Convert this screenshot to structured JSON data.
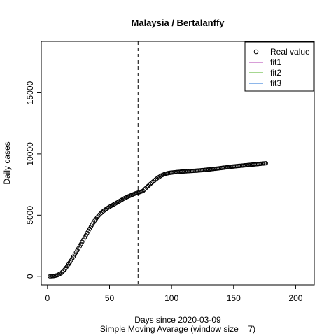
{
  "chart_data": {
    "type": "scatter",
    "title": "Malaysia / Bertalanffy",
    "xlabel": "Days since 2020-03-09",
    "xsublabel": "Simple Moving Avarage (window size = 7)",
    "ylabel": "Daily cases",
    "xlim": [
      -5,
      215
    ],
    "ylim": [
      -700,
      19200
    ],
    "xticks": [
      0,
      50,
      100,
      150,
      200
    ],
    "yticks": [
      0,
      5000,
      10000,
      15000
    ],
    "xtick_labels": [
      "0",
      "50",
      "100",
      "150",
      "200"
    ],
    "ytick_labels": [
      "0",
      "5000",
      "10000",
      "15000"
    ],
    "vline_x": 73,
    "grid": false,
    "legend": {
      "position": "top-right",
      "entries": [
        {
          "label": "Real value",
          "kind": "point",
          "color": "#000000"
        },
        {
          "label": "fit1",
          "kind": "line",
          "color": "#b03cb0"
        },
        {
          "label": "fit2",
          "kind": "line",
          "color": "#4caf20"
        },
        {
          "label": "fit3",
          "kind": "line",
          "color": "#1e6fd6"
        }
      ]
    },
    "series": [
      {
        "name": "Real value",
        "x": [
          2,
          5,
          8,
          11,
          14,
          17,
          20,
          23,
          26,
          29,
          32,
          35,
          38,
          41,
          44,
          47,
          50,
          53,
          56,
          59,
          62,
          65,
          68,
          71,
          74,
          77,
          80,
          83,
          86,
          89,
          92,
          95,
          98,
          101,
          104,
          107,
          110,
          113,
          116,
          119,
          122,
          125,
          128,
          131,
          134,
          137,
          140,
          143,
          146,
          149,
          152,
          155,
          158,
          161,
          164,
          167,
          170,
          173,
          176
        ],
        "y": [
          0,
          20,
          90,
          250,
          560,
          980,
          1450,
          1950,
          2450,
          3000,
          3550,
          4050,
          4550,
          4950,
          5250,
          5480,
          5680,
          5850,
          6020,
          6200,
          6380,
          6520,
          6650,
          6780,
          6870,
          6980,
          7280,
          7560,
          7820,
          8060,
          8250,
          8380,
          8450,
          8490,
          8520,
          8550,
          8570,
          8590,
          8610,
          8630,
          8650,
          8680,
          8710,
          8740,
          8780,
          8810,
          8850,
          8890,
          8930,
          8970,
          9000,
          9030,
          9060,
          9090,
          9120,
          9150,
          9180,
          9210,
          9240
        ]
      }
    ]
  }
}
